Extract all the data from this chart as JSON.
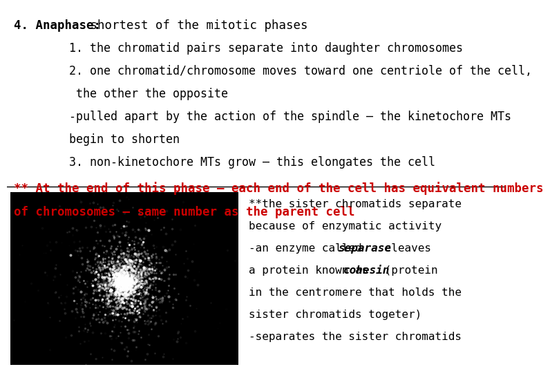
{
  "bg_color": "#ffffff",
  "title_bold": "4. Anaphase:",
  "title_normal": " shortest of the mitotic phases",
  "body_lines": [
    "        1. the chromatid pairs separate into daughter chromosomes",
    "        2. one chromatid/chromosome moves toward one centriole of the cell,",
    "         the other the opposite",
    "        -pulled apart by the action of the spindle – the kinetochore MTs",
    "        begin to shorten",
    "        3. non-kinetochore MTs grow – this elongates the cell"
  ],
  "red_line1": "** At the end of this phase – each end of the cell has equivalent numbers",
  "red_line2": "of chromosomes – same number as the parent cell",
  "sidebar_lines": [
    "**the sister chromatids separate",
    "because of enzymatic activity",
    "-an enzyme called separase cleaves",
    "a protein known as cohesin (protein",
    "in the centromere that holds the",
    "sister chromatids togeter)",
    "-separates the sister chromatids"
  ],
  "sidebar_bold": {
    "2": {
      "word": "separase",
      "pre": "-an enzyme called ",
      "post": " cleaves"
    },
    "3": {
      "word": "cohesin",
      "pre": "a protein known as ",
      "post": " (protein"
    }
  },
  "font_family": "monospace",
  "title_fontsize": 12.5,
  "body_fontsize": 12,
  "red_fontsize": 12.5,
  "sidebar_fontsize": 11.5,
  "red_color": "#cc0000",
  "black_color": "#000000"
}
